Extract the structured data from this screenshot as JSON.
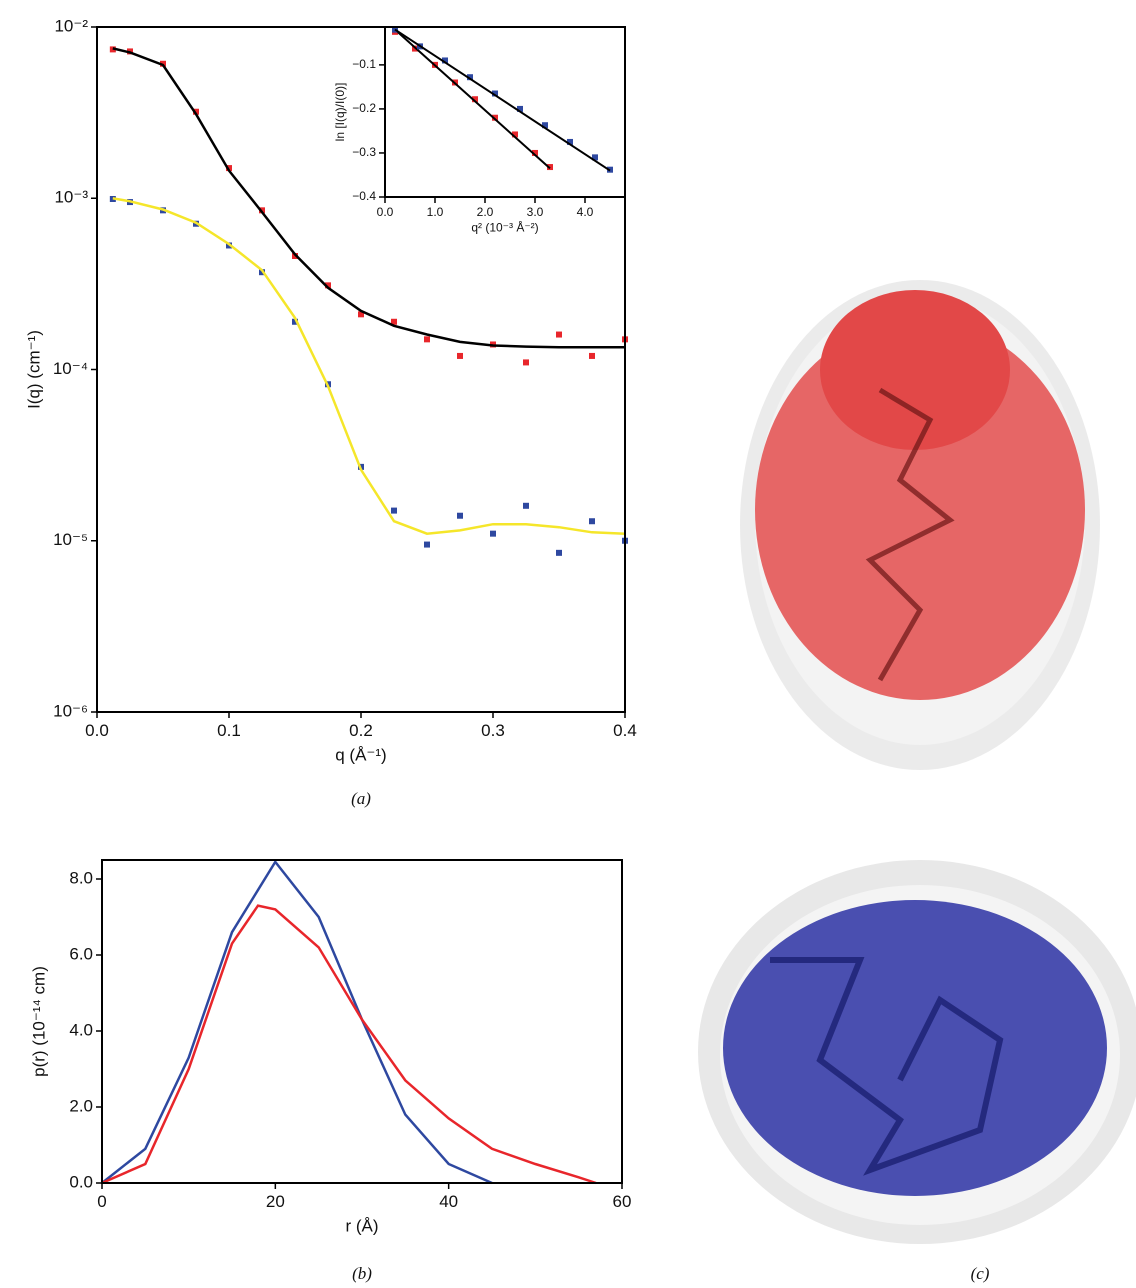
{
  "chart_data": [
    {
      "type": "line",
      "log_y": true,
      "caption": "(a)",
      "x_label": "q (Å⁻¹)",
      "y_label": "I(q) (cm⁻¹)",
      "x": [
        0.012,
        0.025,
        0.05,
        0.075,
        0.1,
        0.125,
        0.15,
        0.175,
        0.2,
        0.225,
        0.25,
        0.275,
        0.3,
        0.325,
        0.35,
        0.375,
        0.4
      ],
      "xlim": [
        0,
        0.4
      ],
      "ylim": [
        1e-06,
        0.01
      ],
      "xticks": [
        {
          "value": 0,
          "label": "0.0"
        },
        0.1,
        0.2,
        0.3,
        0.4
      ],
      "yticks": [
        {
          "value": 1e-06,
          "label": "10⁻⁶"
        },
        {
          "value": 1e-05,
          "label": "10⁻⁵"
        },
        {
          "value": 0.0001,
          "label": "10⁻⁴"
        },
        {
          "value": 0.001,
          "label": "10⁻³"
        },
        {
          "value": 0.01,
          "label": "10⁻²"
        }
      ],
      "series": [
        {
          "mode": "markers",
          "color": "#e8262b",
          "values": [
            0.0074,
            0.0072,
            0.0061,
            0.0032,
            0.0015,
            0.00085,
            0.00046,
            0.00031,
            0.00021,
            0.00019,
            0.00015,
            0.00012,
            0.00014,
            0.00011,
            0.00016,
            0.00012,
            0.00015
          ]
        },
        {
          "mode": "line",
          "color": "#000000",
          "values": [
            0.0075,
            0.0071,
            0.006,
            0.0031,
            0.00145,
            0.00083,
            0.00047,
            0.0003,
            0.00022,
            0.00018,
            0.00016,
            0.000145,
            0.000138,
            0.000136,
            0.000135,
            0.000135,
            0.000135
          ]
        },
        {
          "mode": "markers",
          "color": "#2e48a0",
          "values": [
            0.00099,
            0.00095,
            0.00085,
            0.00071,
            0.00053,
            0.00037,
            0.00019,
            8.2e-05,
            2.7e-05,
            1.5e-05,
            9.5e-06,
            1.4e-05,
            1.1e-05,
            1.6e-05,
            8.5e-06,
            1.3e-05,
            1e-05
          ]
        },
        {
          "mode": "line",
          "color": "#f5e62a",
          "values": [
            0.001,
            0.00096,
            0.00086,
            0.00072,
            0.00054,
            0.00038,
            0.0002,
            8e-05,
            2.6e-05,
            1.3e-05,
            1.1e-05,
            1.15e-05,
            1.25e-05,
            1.25e-05,
            1.2e-05,
            1.12e-05,
            1.1e-05
          ]
        }
      ]
    },
    {
      "type": "line",
      "x_label": "q² (10⁻³ Å⁻²)",
      "y_label": "ln [I(q)/I(0)]",
      "xlim": [
        0,
        4.8
      ],
      "ylim": [
        -0.4,
        -0.014
      ],
      "xticks": [
        {
          "value": 0,
          "label": "0.0"
        },
        {
          "value": 1,
          "label": "1.0"
        },
        {
          "value": 2,
          "label": "2.0"
        },
        {
          "value": 3,
          "label": "3.0"
        },
        {
          "value": 4,
          "label": "4.0"
        }
      ],
      "yticks": [
        {
          "value": -0.4,
          "label": "−0.4"
        },
        {
          "value": -0.3,
          "label": "−0.3"
        },
        {
          "value": -0.2,
          "label": "−0.2"
        },
        {
          "value": -0.1,
          "label": "−0.1"
        }
      ],
      "series": [
        {
          "mode": "markers",
          "color": "#e8262b",
          "x": [
            0.2,
            0.6,
            1.0,
            1.4,
            1.8,
            2.2,
            2.6,
            3.0,
            3.3
          ],
          "values": [
            -0.025,
            -0.063,
            -0.1,
            -0.14,
            -0.178,
            -0.22,
            -0.258,
            -0.3,
            -0.332
          ]
        },
        {
          "mode": "line",
          "color": "#000000",
          "x": [
            0.2,
            3.3
          ],
          "values": [
            -0.02,
            -0.335
          ]
        },
        {
          "mode": "markers",
          "color": "#2e48a0",
          "x": [
            0.2,
            0.7,
            1.2,
            1.7,
            2.2,
            2.7,
            3.2,
            3.7,
            4.2,
            4.5
          ],
          "values": [
            -0.02,
            -0.058,
            -0.09,
            -0.128,
            -0.165,
            -0.2,
            -0.237,
            -0.275,
            -0.31,
            -0.338
          ]
        },
        {
          "mode": "line",
          "color": "#000000",
          "x": [
            0.2,
            4.5
          ],
          "values": [
            -0.02,
            -0.34
          ]
        }
      ]
    },
    {
      "type": "line",
      "caption": "(b)",
      "x_label": "r (Å)",
      "y_label": "p(r) (10⁻¹⁴ cm)",
      "xlim": [
        0,
        60
      ],
      "ylim": [
        0,
        8.5
      ],
      "xticks": [
        0,
        20,
        40,
        60
      ],
      "yticks": [
        {
          "value": 0,
          "label": "0.0"
        },
        {
          "value": 2,
          "label": "2.0"
        },
        {
          "value": 4,
          "label": "4.0"
        },
        {
          "value": 6,
          "label": "6.0"
        },
        {
          "value": 8,
          "label": "8.0"
        }
      ],
      "series": [
        {
          "mode": "line",
          "color": "#2e48a0",
          "x": [
            0,
            5,
            10,
            15,
            20,
            25,
            30,
            35,
            40,
            45
          ],
          "values": [
            0,
            0.9,
            3.3,
            6.6,
            8.45,
            7.0,
            4.3,
            1.8,
            0.5,
            0
          ]
        },
        {
          "mode": "line",
          "color": "#e8262b",
          "x": [
            0,
            5,
            10,
            15,
            18,
            20,
            25,
            30,
            35,
            40,
            45,
            50,
            55,
            57
          ],
          "values": [
            0,
            0.5,
            3.0,
            6.3,
            7.3,
            7.2,
            6.2,
            4.3,
            2.7,
            1.7,
            0.9,
            0.5,
            0.15,
            0
          ]
        }
      ]
    }
  ],
  "panel_c": {
    "caption": "(c)"
  }
}
